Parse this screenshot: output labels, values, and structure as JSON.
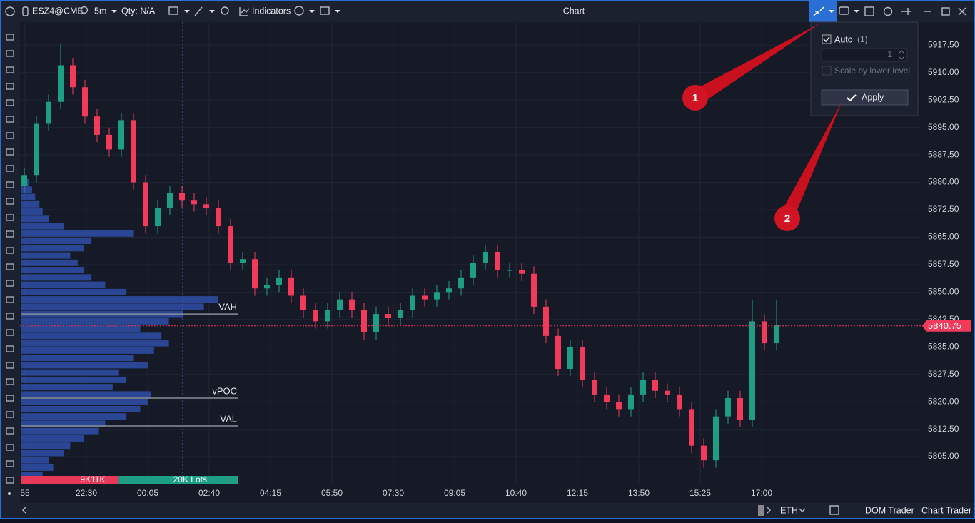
{
  "toolbar": {
    "symbol": "ESZ4@CME",
    "interval": "5m",
    "qty": "Qty: N/A",
    "indicators": "Indicators",
    "title": "Chart"
  },
  "popup": {
    "auto": "Auto",
    "auto_count": "(1)",
    "level": 1,
    "scale_by_lower": "Scale by lower level",
    "apply": "Apply"
  },
  "annotations": [
    "1",
    "2"
  ],
  "bottom_bar": {
    "session": "ETH",
    "dom_trader": "DOM Trader",
    "chart_trader": "Chart Trader"
  },
  "chart_data": {
    "type": "candlestick",
    "up_color": "#1f9e86",
    "down_color": "#f23a5a",
    "open": [
      5879,
      5882,
      5896,
      5902,
      5912,
      5906,
      5898,
      5893,
      5889,
      5897,
      5880,
      5868,
      5873,
      5877,
      5875,
      5874,
      5873,
      5868,
      5858,
      5859,
      5851,
      5852,
      5854,
      5849,
      5845,
      5842,
      5845,
      5848,
      5845,
      5839,
      5844,
      5843,
      5845,
      5849,
      5848,
      5850,
      5851,
      5854,
      5858,
      5861,
      5856,
      5856,
      5855,
      5846,
      5838,
      5829,
      5835,
      5826,
      5822,
      5820,
      5818,
      5822,
      5826,
      5823,
      5822,
      5818,
      5808,
      5804,
      5816,
      5821,
      5815,
      5842,
      5836
    ],
    "high": [
      5884,
      5898,
      5904,
      5918,
      5914,
      5908,
      5900,
      5895,
      5899,
      5899,
      5882,
      5875,
      5879,
      5879,
      5877,
      5876,
      5875,
      5870,
      5861,
      5861,
      5854,
      5856,
      5856,
      5851,
      5847,
      5847,
      5850,
      5850,
      5847,
      5846,
      5846,
      5847,
      5851,
      5851,
      5852,
      5853,
      5856,
      5860,
      5863,
      5863,
      5858,
      5858,
      5857,
      5848,
      5840,
      5837,
      5837,
      5828,
      5824,
      5822,
      5824,
      5828,
      5828,
      5825,
      5824,
      5820,
      5810,
      5818,
      5823,
      5823,
      5848,
      5844,
      5848
    ],
    "low": [
      5877,
      5880,
      5894,
      5900,
      5904,
      5896,
      5891,
      5887,
      5887,
      5878,
      5866,
      5866,
      5871,
      5873,
      5872,
      5871,
      5866,
      5856,
      5856,
      5849,
      5849,
      5850,
      5847,
      5843,
      5840,
      5840,
      5843,
      5843,
      5837,
      5837,
      5841,
      5841,
      5843,
      5846,
      5846,
      5848,
      5849,
      5852,
      5856,
      5854,
      5854,
      5853,
      5844,
      5836,
      5827,
      5827,
      5824,
      5820,
      5818,
      5816,
      5816,
      5820,
      5821,
      5820,
      5816,
      5806,
      5802,
      5802,
      5814,
      5813,
      5813,
      5834,
      5834
    ],
    "close": [
      5882,
      5896,
      5902,
      5912,
      5906,
      5898,
      5893,
      5889,
      5897,
      5880,
      5868,
      5873,
      5877,
      5875,
      5874,
      5873,
      5868,
      5858,
      5859,
      5851,
      5852,
      5854,
      5849,
      5845,
      5842,
      5845,
      5848,
      5845,
      5839,
      5844,
      5843,
      5845,
      5849,
      5848,
      5850,
      5851,
      5854,
      5858,
      5861,
      5856,
      5856,
      5855,
      5846,
      5838,
      5829,
      5835,
      5826,
      5822,
      5820,
      5818,
      5822,
      5826,
      5823,
      5822,
      5818,
      5808,
      5804,
      5816,
      5821,
      5815,
      5842,
      5836,
      5841
    ],
    "ylim": [
      5797.6,
      5923.6
    ],
    "yticks": [
      {
        "value": 5917.5,
        "label": "5917.50"
      },
      {
        "value": 5910,
        "label": "5910.00"
      },
      {
        "value": 5902.5,
        "label": "5902.50"
      },
      {
        "value": 5895,
        "label": "5895.00"
      },
      {
        "value": 5887.5,
        "label": "5887.50"
      },
      {
        "value": 5880,
        "label": "5880.00"
      },
      {
        "value": 5872.5,
        "label": "5872.50"
      },
      {
        "value": 5865,
        "label": "5865.00"
      },
      {
        "value": 5857.5,
        "label": "5857.50"
      },
      {
        "value": 5850,
        "label": "5850.00"
      },
      {
        "value": 5842.5,
        "label": "5842.50"
      },
      {
        "value": 5835,
        "label": "5835.00"
      },
      {
        "value": 5827.5,
        "label": "5827.50"
      },
      {
        "value": 5820,
        "label": "5820.00"
      },
      {
        "value": 5812.5,
        "label": "5812.50"
      },
      {
        "value": 5805,
        "label": "5805.00"
      }
    ],
    "xticks": [
      "55",
      "22:30",
      "00:05",
      "02:40",
      "04:15",
      "05:50",
      "07:30",
      "09:05",
      "10:40",
      "12:15",
      "13:50",
      "15:25",
      "17:00"
    ],
    "last_price": 5840.75,
    "last_price_color": "#f23a5a",
    "volume_profile": {
      "color": "#2f4fa8",
      "prices": [
        5800,
        5802,
        5804,
        5806,
        5808,
        5810,
        5812,
        5814,
        5816,
        5818,
        5820,
        5822,
        5824,
        5826,
        5828,
        5830,
        5832,
        5834,
        5836,
        5838,
        5840,
        5842,
        5844,
        5846,
        5848,
        5850,
        5852,
        5854,
        5856,
        5858,
        5860,
        5862,
        5864,
        5866,
        5868,
        5870,
        5872,
        5874,
        5876,
        5878,
        5880
      ],
      "values": [
        2000,
        3000,
        2600,
        4000,
        4600,
        5900,
        7300,
        7900,
        9900,
        11200,
        11900,
        12200,
        8600,
        9900,
        9200,
        11900,
        10600,
        12500,
        13900,
        13200,
        11200,
        13900,
        15200,
        17200,
        18500,
        9900,
        7900,
        6600,
        5900,
        5300,
        4600,
        5900,
        6600,
        10600,
        4000,
        2600,
        2000,
        1700,
        1300,
        1000,
        700
      ]
    },
    "levels": [
      {
        "label": "VAH",
        "value": 5844
      },
      {
        "label": "vPOC",
        "value": 5821
      },
      {
        "label": "VAL",
        "value": 5813.4
      }
    ],
    "session_volume": {
      "sell": 9000,
      "sell_label": "9K",
      "buy": 11000,
      "buy_label": "11K",
      "total_label": "20K Lots"
    }
  }
}
